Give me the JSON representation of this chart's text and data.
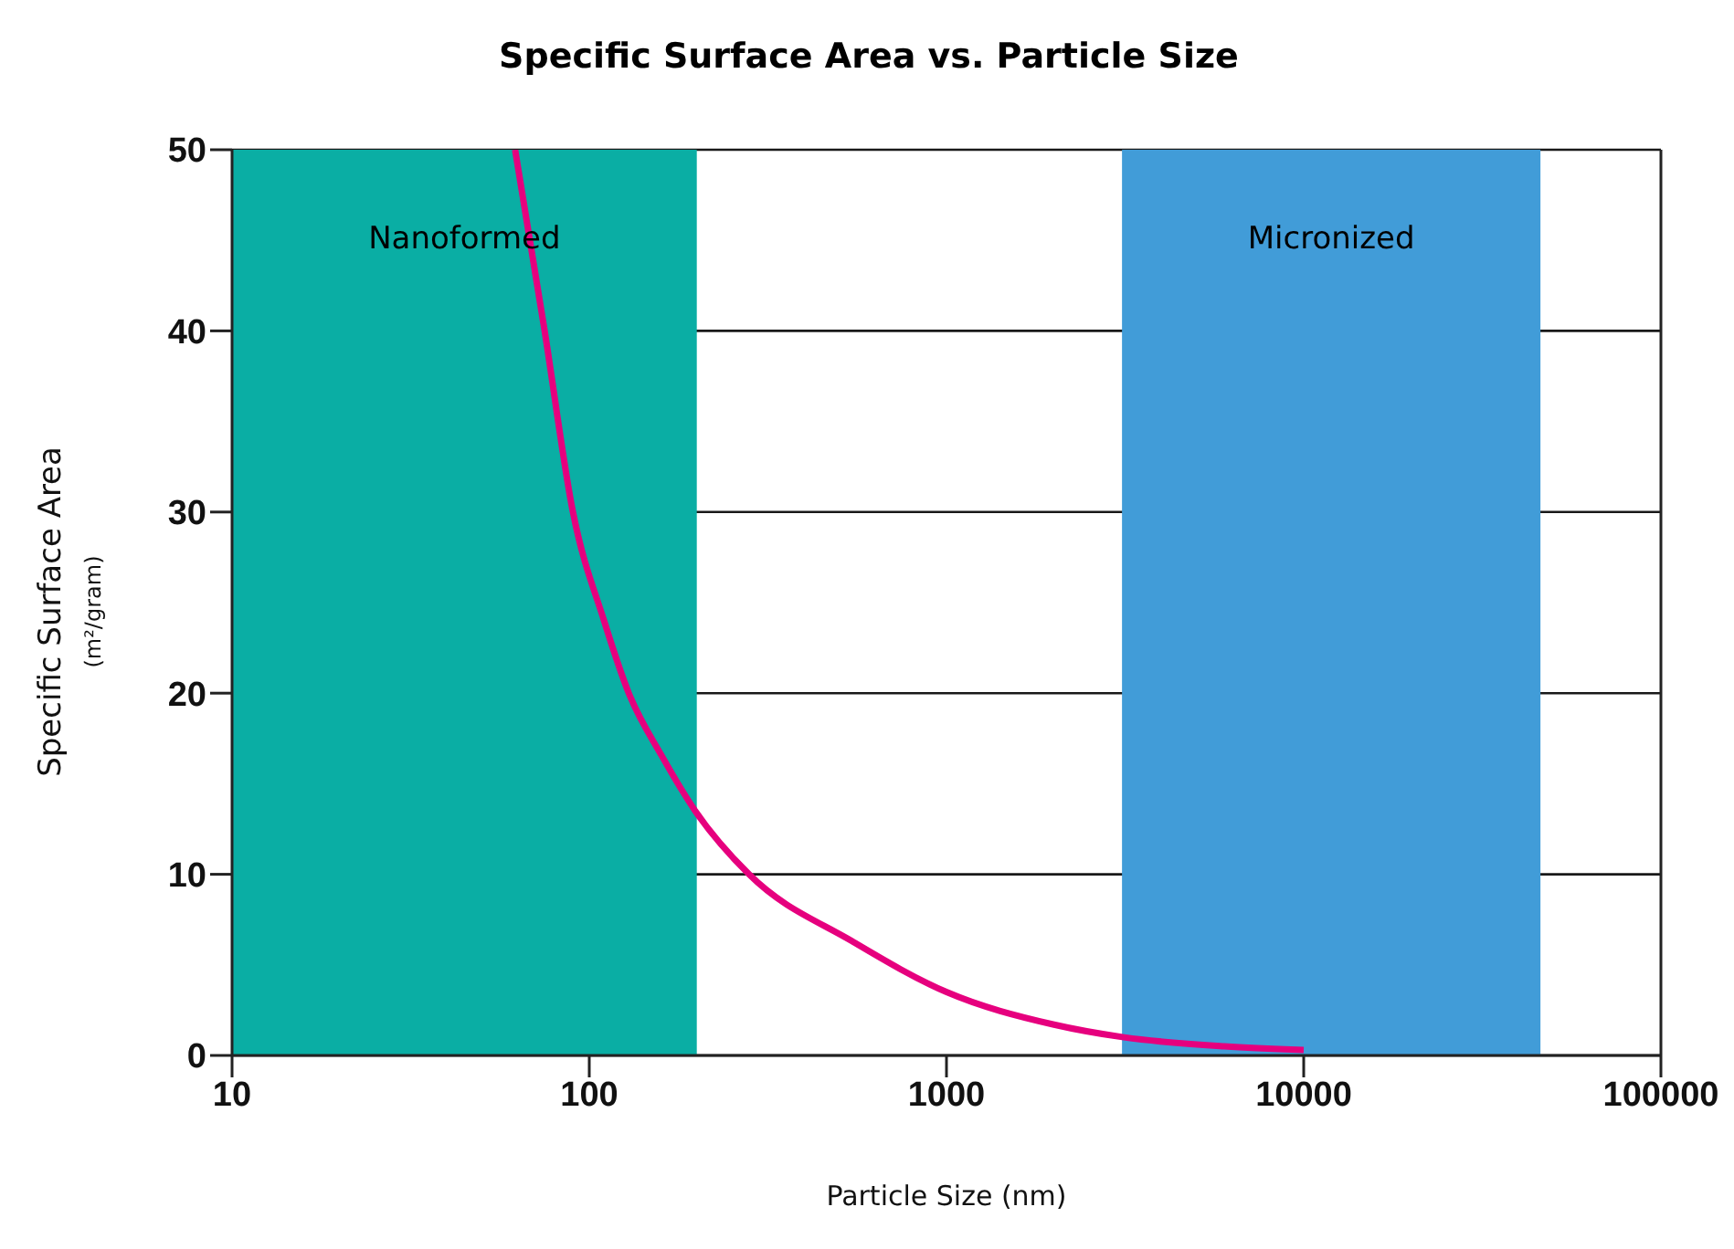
{
  "chart_data": {
    "type": "line",
    "title": "Specific Surface Area vs. Particle Size",
    "xlabel": "Particle Size (nm)",
    "ylabel": "Specific Surface Area (m²/gram)",
    "log": "x",
    "x": [
      62,
      75,
      90,
      110,
      129,
      160,
      198,
      280,
      545,
      1000,
      2000,
      3140,
      6000,
      10000
    ],
    "series": [
      {
        "color": "#e6007e",
        "values": [
          50,
          40,
          30,
          24,
          20,
          16.5,
          13.5,
          10,
          6.3,
          3.5,
          1.7,
          1.0,
          0.5,
          0.3
        ]
      }
    ],
    "xlim": [
      10,
      100000
    ],
    "xticks": [
      10,
      100,
      1000,
      10000,
      100000
    ],
    "ylim": [
      0,
      50
    ],
    "yticks": [
      0,
      10,
      20,
      30,
      40,
      50
    ],
    "grid": "y",
    "marker": "none",
    "line_style": "solid",
    "bands": [
      {
        "axis": "x",
        "from": 10,
        "to": 200,
        "label": "Nanoformed",
        "color": "#0aaea4"
      },
      {
        "axis": "x",
        "from": 3100,
        "to": 46000,
        "label": "Micronized",
        "color": "#419cd8"
      }
    ]
  }
}
